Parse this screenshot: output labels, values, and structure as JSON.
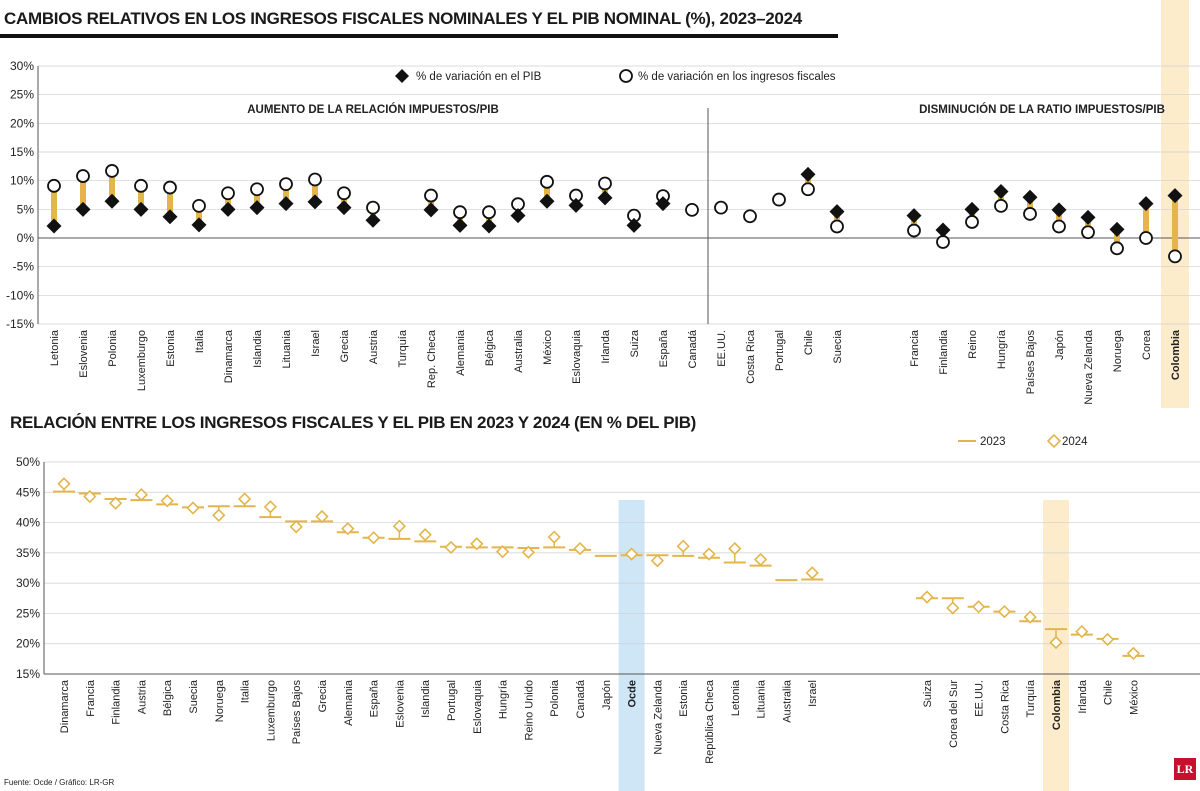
{
  "title1": "CAMBIOS RELATIVOS EN LOS INGRESOS FISCALES NOMINALES Y EL PIB NOMINAL (%), 2023–2024",
  "title2": "RELACIÓN ENTRE LOS INGRESOS FISCALES Y EL PIB EN 2023 Y 2024 (EN % DEL PIB)",
  "source": "Fuente: Ocde / Gráfico: LR-GR",
  "logo": "LR",
  "colors": {
    "accent": "#e3b54a",
    "highlight_yellow": "#fdeccc",
    "highlight_blue": "#cfe6f7",
    "marker": "#111111",
    "grid": "#cfcfcf"
  },
  "chart_data": [
    {
      "type": "scatter",
      "title": "CAMBIOS RELATIVOS EN LOS INGRESOS FISCALES NOMINALES Y EL PIB NOMINAL (%), 2023–2024",
      "ylim": [
        -15,
        30
      ],
      "yticks": [
        "30%",
        "25%",
        "20%",
        "15%",
        "10%",
        "5%",
        "0%",
        "-5%",
        "-10%",
        "-15%"
      ],
      "grid": true,
      "legend_position": "top",
      "sections": [
        "AUMENTO DE LA RELACIÓN IMPUESTOS/PIB",
        "DISMINUCIÓN DE LA RATIO IMPUESTOS/PIB"
      ],
      "highlight": "Colombia",
      "categories": [
        "Letonia",
        "Eslovenia",
        "Polonia",
        "Luxemburgo",
        "Estonia",
        "Italia",
        "Dinamarca",
        "Islandia",
        "Lituania",
        "Israel",
        "Grecia",
        "Austria",
        "Turquía",
        "Rep. Checa",
        "Alemania",
        "Bélgica",
        "Australia",
        "México",
        "Eslovaquia",
        "Irlanda",
        "Suiza",
        "España",
        "Canadá",
        "EE.UU.",
        "Costa Rica",
        "Portugal",
        "Chile",
        "Suecia",
        "Francia",
        "Finlandia",
        "Reino",
        "Hungría",
        "Países Bajos",
        "Japón",
        "Nueva Zelanda",
        "Noruega",
        "Corea",
        "Colombia"
      ],
      "series": [
        {
          "name": "% de variación en el PIB",
          "marker": "diamond",
          "values": [
            2.1,
            5.0,
            6.4,
            5.0,
            3.7,
            2.3,
            5.0,
            5.3,
            6.0,
            6.3,
            5.3,
            3.1,
            null,
            4.9,
            2.2,
            2.1,
            3.9,
            6.4,
            5.7,
            7.0,
            2.2,
            6.0,
            null,
            null,
            null,
            null,
            11.1,
            4.6,
            3.9,
            1.4,
            5.0,
            8.1,
            7.1,
            4.9,
            3.6,
            1.5,
            6.0,
            7.4
          ]
        },
        {
          "name": "% de variación en los ingresos fiscales",
          "marker": "circle",
          "values": [
            9.1,
            10.8,
            11.7,
            9.1,
            8.8,
            5.6,
            7.8,
            8.5,
            9.4,
            10.2,
            7.8,
            5.3,
            null,
            7.4,
            4.5,
            4.5,
            5.9,
            9.8,
            7.4,
            9.5,
            3.9,
            7.3,
            4.9,
            5.3,
            3.8,
            6.7,
            8.5,
            2.0,
            1.3,
            -0.7,
            2.8,
            5.6,
            4.2,
            2.0,
            1.0,
            -1.8,
            0.0,
            -3.2
          ]
        }
      ]
    },
    {
      "type": "scatter",
      "title": "RELACIÓN ENTRE LOS INGRESOS FISCALES Y EL PIB EN 2023 Y 2024 (EN % DEL PIB)",
      "ylim": [
        15,
        50
      ],
      "yticks": [
        "50%",
        "45%",
        "40%",
        "35%",
        "30%",
        "25%",
        "20%",
        "15%"
      ],
      "grid": true,
      "legend_position": "top-right",
      "highlight": [
        "Ocde",
        "Colombia"
      ],
      "categories": [
        "Dinamarca",
        "Francia",
        "Finlandia",
        "Austria",
        "Bélgica",
        "Suecia",
        "Noruega",
        "Italia",
        "Luxemburgo",
        "Países Bajos",
        "Grecia",
        "Alemania",
        "España",
        "Eslovenia",
        "Islandia",
        "Portugal",
        "Eslovaquia",
        "Hungría",
        "Reino Unido",
        "Polonia",
        "Canadá",
        "Japón",
        "Ocde",
        "Nueva Zelanda",
        "Estonia",
        "República Checa",
        "Letonia",
        "Lituania",
        "Australia",
        "Israel",
        "Suiza",
        "Corea del Sur",
        "EE.UU.",
        "Costa Rica",
        "Turquía",
        "Colombia",
        "Irlanda",
        "Chile",
        "México"
      ],
      "series": [
        {
          "name": "2023",
          "marker": "line",
          "values": [
            45.1,
            44.8,
            43.9,
            43.7,
            43.0,
            42.5,
            42.7,
            42.7,
            40.9,
            40.2,
            40.2,
            38.4,
            37.5,
            37.3,
            36.9,
            36.0,
            35.9,
            35.9,
            35.8,
            35.9,
            35.5,
            34.5,
            34.6,
            34.6,
            34.5,
            34.2,
            33.4,
            32.9,
            30.5,
            30.6,
            27.5,
            27.5,
            26.1,
            25.3,
            23.7,
            22.4,
            21.5,
            20.8,
            18.0
          ]
        },
        {
          "name": "2024",
          "marker": "diamond",
          "values": [
            46.4,
            44.3,
            43.2,
            44.6,
            43.6,
            42.4,
            41.2,
            43.9,
            42.6,
            39.3,
            41.0,
            39.0,
            37.5,
            39.4,
            38.0,
            35.9,
            36.5,
            35.2,
            35.1,
            37.6,
            35.7,
            null,
            34.8,
            33.7,
            36.1,
            34.8,
            35.7,
            33.9,
            null,
            31.7,
            27.7,
            25.9,
            26.1,
            25.3,
            24.4,
            20.2,
            22.0,
            20.7,
            18.4
          ]
        }
      ]
    }
  ]
}
